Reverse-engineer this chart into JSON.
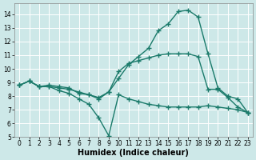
{
  "line1_x": [
    0,
    1,
    2,
    3,
    4,
    5,
    6,
    7,
    8,
    9,
    10,
    11,
    12,
    13,
    14,
    15,
    16,
    17,
    18,
    19,
    20,
    21,
    22,
    23
  ],
  "line1_y": [
    8.8,
    9.1,
    8.7,
    8.8,
    8.7,
    8.6,
    8.2,
    8.1,
    7.8,
    8.3,
    9.3,
    10.3,
    10.9,
    11.5,
    12.8,
    13.3,
    14.2,
    14.3,
    13.8,
    11.1,
    8.6,
    8.0,
    7.8,
    6.8
  ],
  "line2_x": [
    0,
    1,
    2,
    3,
    4,
    5,
    6,
    7,
    8,
    9,
    10,
    11,
    12,
    13,
    14,
    15,
    16,
    17,
    18,
    19,
    20,
    21,
    22,
    23
  ],
  "line2_y": [
    8.8,
    9.1,
    8.7,
    8.7,
    8.4,
    8.2,
    7.8,
    7.4,
    6.4,
    5.1,
    8.1,
    7.8,
    7.6,
    7.4,
    7.3,
    7.2,
    7.2,
    7.2,
    7.2,
    7.3,
    7.2,
    7.1,
    7.0,
    6.8
  ],
  "line3_x": [
    0,
    1,
    2,
    3,
    4,
    5,
    6,
    7,
    8,
    9,
    10,
    11,
    12,
    13,
    14,
    15,
    16,
    17,
    18,
    19,
    20,
    21,
    22,
    23
  ],
  "line3_y": [
    8.8,
    9.1,
    8.7,
    8.7,
    8.6,
    8.5,
    8.3,
    8.1,
    7.9,
    8.3,
    9.8,
    10.4,
    10.6,
    10.8,
    11.0,
    11.1,
    11.1,
    11.1,
    10.9,
    8.5,
    8.5,
    7.9,
    7.2,
    6.8
  ],
  "line_color": "#1a7a6a",
  "marker": "+",
  "markersize": 4,
  "markeredgewidth": 1.0,
  "linewidth": 1.0,
  "xlabel": "Humidex (Indice chaleur)",
  "xlim": [
    -0.5,
    23.5
  ],
  "ylim": [
    5,
    14.8
  ],
  "yticks": [
    5,
    6,
    7,
    8,
    9,
    10,
    11,
    12,
    13,
    14
  ],
  "xticks": [
    0,
    1,
    2,
    3,
    4,
    5,
    6,
    7,
    8,
    9,
    10,
    11,
    12,
    13,
    14,
    15,
    16,
    17,
    18,
    19,
    20,
    21,
    22,
    23
  ],
  "bg_color": "#cde8e8",
  "grid_color": "#ffffff",
  "tick_fontsize": 5.5,
  "xlabel_fontsize": 7
}
